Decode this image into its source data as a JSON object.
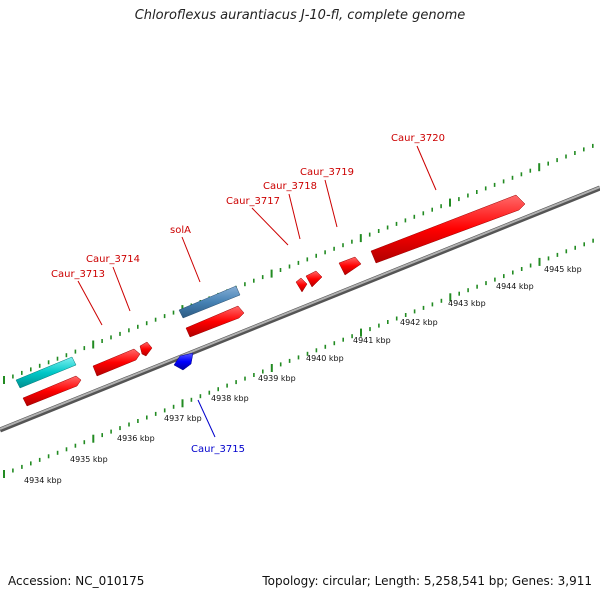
{
  "title": "Chloroflexus aurantiacus J-10-fl, complete genome",
  "footer": {
    "accession": "Accession: NC_010175",
    "summary": "Topology: circular; Length: 5,258,541 bp; Genes: 3,911"
  },
  "colors": {
    "forward_gene": "#ff0000",
    "reverse_gene": "#0000ff",
    "rna_gene": "#00c8c8",
    "named_gene": "#4682b4",
    "tick": "#228b22",
    "backbone": "#808080"
  },
  "ruler": {
    "unit": "kbp",
    "labels": [
      "4934 kbp",
      "4935 kbp",
      "4936 kbp",
      "4937 kbp",
      "4938 kbp",
      "4939 kbp",
      "4940 kbp",
      "4941 kbp",
      "4942 kbp",
      "4943 kbp",
      "4944 kbp",
      "4945 kbp"
    ]
  },
  "genes": [
    {
      "name": "Caur_3713",
      "strand": "+"
    },
    {
      "name": "Caur_3714",
      "strand": "+"
    },
    {
      "name": "solA",
      "strand": "+"
    },
    {
      "name": "Caur_3715",
      "strand": "-"
    },
    {
      "name": "Caur_3717",
      "strand": "+"
    },
    {
      "name": "Caur_3718",
      "strand": "+"
    },
    {
      "name": "Caur_3719",
      "strand": "+"
    },
    {
      "name": "Caur_3720",
      "strand": "+"
    }
  ]
}
